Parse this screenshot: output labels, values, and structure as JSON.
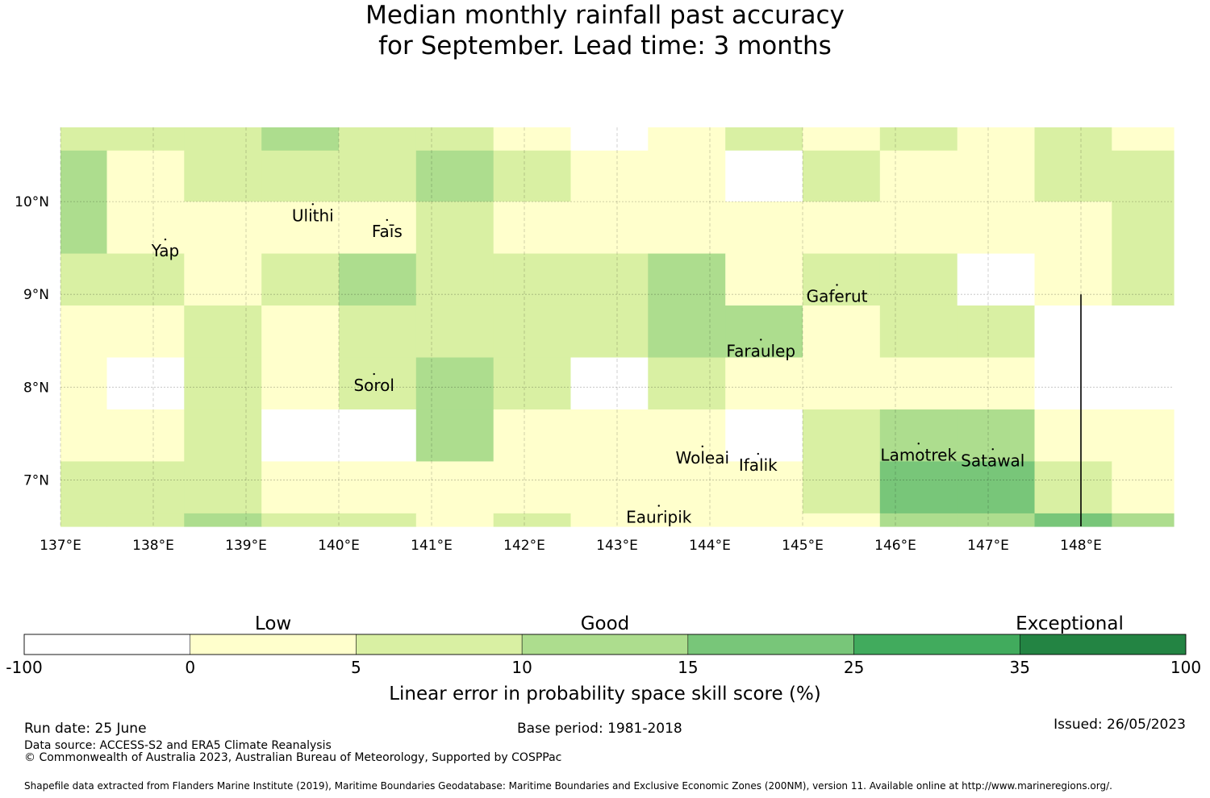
{
  "title": {
    "line1": "Median monthly rainfall past accuracy",
    "line2": "for September. Lead time: 3 months"
  },
  "chart_data": {
    "type": "heatmap",
    "xlim": [
      137.0,
      149.0
    ],
    "ylim": [
      6.5,
      10.8
    ],
    "xticks": [
      {
        "value": 137,
        "label": "137°E"
      },
      {
        "value": 138,
        "label": "138°E"
      },
      {
        "value": 139,
        "label": "139°E"
      },
      {
        "value": 140,
        "label": "140°E"
      },
      {
        "value": 141,
        "label": "141°E"
      },
      {
        "value": 142,
        "label": "142°E"
      },
      {
        "value": 143,
        "label": "143°E"
      },
      {
        "value": 144,
        "label": "144°E"
      },
      {
        "value": 145,
        "label": "145°E"
      },
      {
        "value": 146,
        "label": "146°E"
      },
      {
        "value": 147,
        "label": "147°E"
      },
      {
        "value": 148,
        "label": "148°E"
      }
    ],
    "yticks": [
      {
        "value": 10,
        "label": "10°N"
      },
      {
        "value": 9,
        "label": "9°N"
      },
      {
        "value": 8,
        "label": "8°N"
      },
      {
        "value": 7,
        "label": "7°N"
      }
    ],
    "grid": true,
    "cell_columns": [
      137.0,
      137.5,
      138.333,
      139.167,
      140.0,
      140.833,
      141.667,
      142.5,
      143.333,
      144.167,
      145.0,
      145.833,
      146.667,
      147.5,
      148.333,
      149.0
    ],
    "cell_rows": [
      10.8,
      10.55,
      10.0,
      9.44,
      8.88,
      8.32,
      7.76,
      7.2,
      6.64,
      6.5
    ],
    "class_grid": [
      [
        2,
        2,
        2,
        3,
        2,
        2,
        1,
        0,
        1,
        2,
        1,
        2,
        1,
        2,
        1
      ],
      [
        3,
        1,
        2,
        2,
        2,
        3,
        2,
        1,
        1,
        0,
        2,
        1,
        1,
        2,
        2
      ],
      [
        3,
        1,
        1,
        1,
        1,
        2,
        1,
        1,
        1,
        1,
        1,
        1,
        1,
        1,
        2
      ],
      [
        2,
        2,
        1,
        2,
        3,
        2,
        2,
        2,
        3,
        1,
        2,
        2,
        0,
        1,
        2
      ],
      [
        1,
        1,
        2,
        1,
        2,
        2,
        2,
        2,
        3,
        3,
        1,
        2,
        2,
        0,
        0
      ],
      [
        1,
        0,
        2,
        1,
        2,
        3,
        2,
        0,
        2,
        1,
        1,
        1,
        1,
        0,
        0
      ],
      [
        1,
        1,
        2,
        0,
        0,
        3,
        1,
        1,
        1,
        0,
        2,
        3,
        3,
        1,
        1
      ],
      [
        2,
        2,
        2,
        1,
        1,
        1,
        1,
        1,
        1,
        1,
        2,
        4,
        4,
        2,
        1
      ],
      [
        2,
        2,
        3,
        2,
        2,
        1,
        2,
        1,
        1,
        1,
        1,
        3,
        3,
        4,
        3
      ]
    ],
    "eez_boundary": {
      "lon": 148.0,
      "lat_range": [
        6.5,
        9.0
      ]
    },
    "places": [
      {
        "name": "Yap",
        "lon": 138.13,
        "lat": 9.47
      },
      {
        "name": "Ulithi",
        "lon": 139.72,
        "lat": 9.85
      },
      {
        "name": "Faīs",
        "lon": 140.52,
        "lat": 9.68
      },
      {
        "name": "Gaferut",
        "lon": 145.37,
        "lat": 8.98
      },
      {
        "name": "Faraulep",
        "lon": 144.55,
        "lat": 8.39
      },
      {
        "name": "Sorol",
        "lon": 140.38,
        "lat": 8.02
      },
      {
        "name": "Woleai",
        "lon": 143.92,
        "lat": 7.24
      },
      {
        "name": "Ifalik",
        "lon": 144.52,
        "lat": 7.16
      },
      {
        "name": "Lamotrek",
        "lon": 146.25,
        "lat": 7.27
      },
      {
        "name": "Satawal",
        "lon": 147.05,
        "lat": 7.21
      },
      {
        "name": "Eauripik",
        "lon": 143.45,
        "lat": 6.6
      }
    ],
    "colorbar": {
      "boundaries": [
        "-100",
        "0",
        "5",
        "10",
        "15",
        "25",
        "35",
        "100"
      ],
      "colors": [
        "#ffffff",
        "#ffffcc",
        "#d9f0a3",
        "#addd8e",
        "#78c679",
        "#41ab5d",
        "#238443"
      ],
      "category_labels": [
        "Low",
        "Good",
        "Exceptional"
      ],
      "label": "Linear error in probability space skill score (%)"
    }
  },
  "footer": {
    "run_date": "Run date: 25 June",
    "base_period": "Base period: 1981-2018",
    "issued": "Issued: 26/05/2023",
    "data_source": "Data source: ACCESS-S2 and ERA5 Climate Reanalysis",
    "copyright": "© Commonwealth of Australia 2023, Australian Bureau of Meteorology, Supported by COSPPac",
    "shapefile": "Shapefile data extracted from Flanders Marine Institute (2019), Maritime Boundaries Geodatabase: Maritime Boundaries and Exclusive Economic Zones (200NM), version 11. Available online at http://www.marineregions.org/."
  }
}
